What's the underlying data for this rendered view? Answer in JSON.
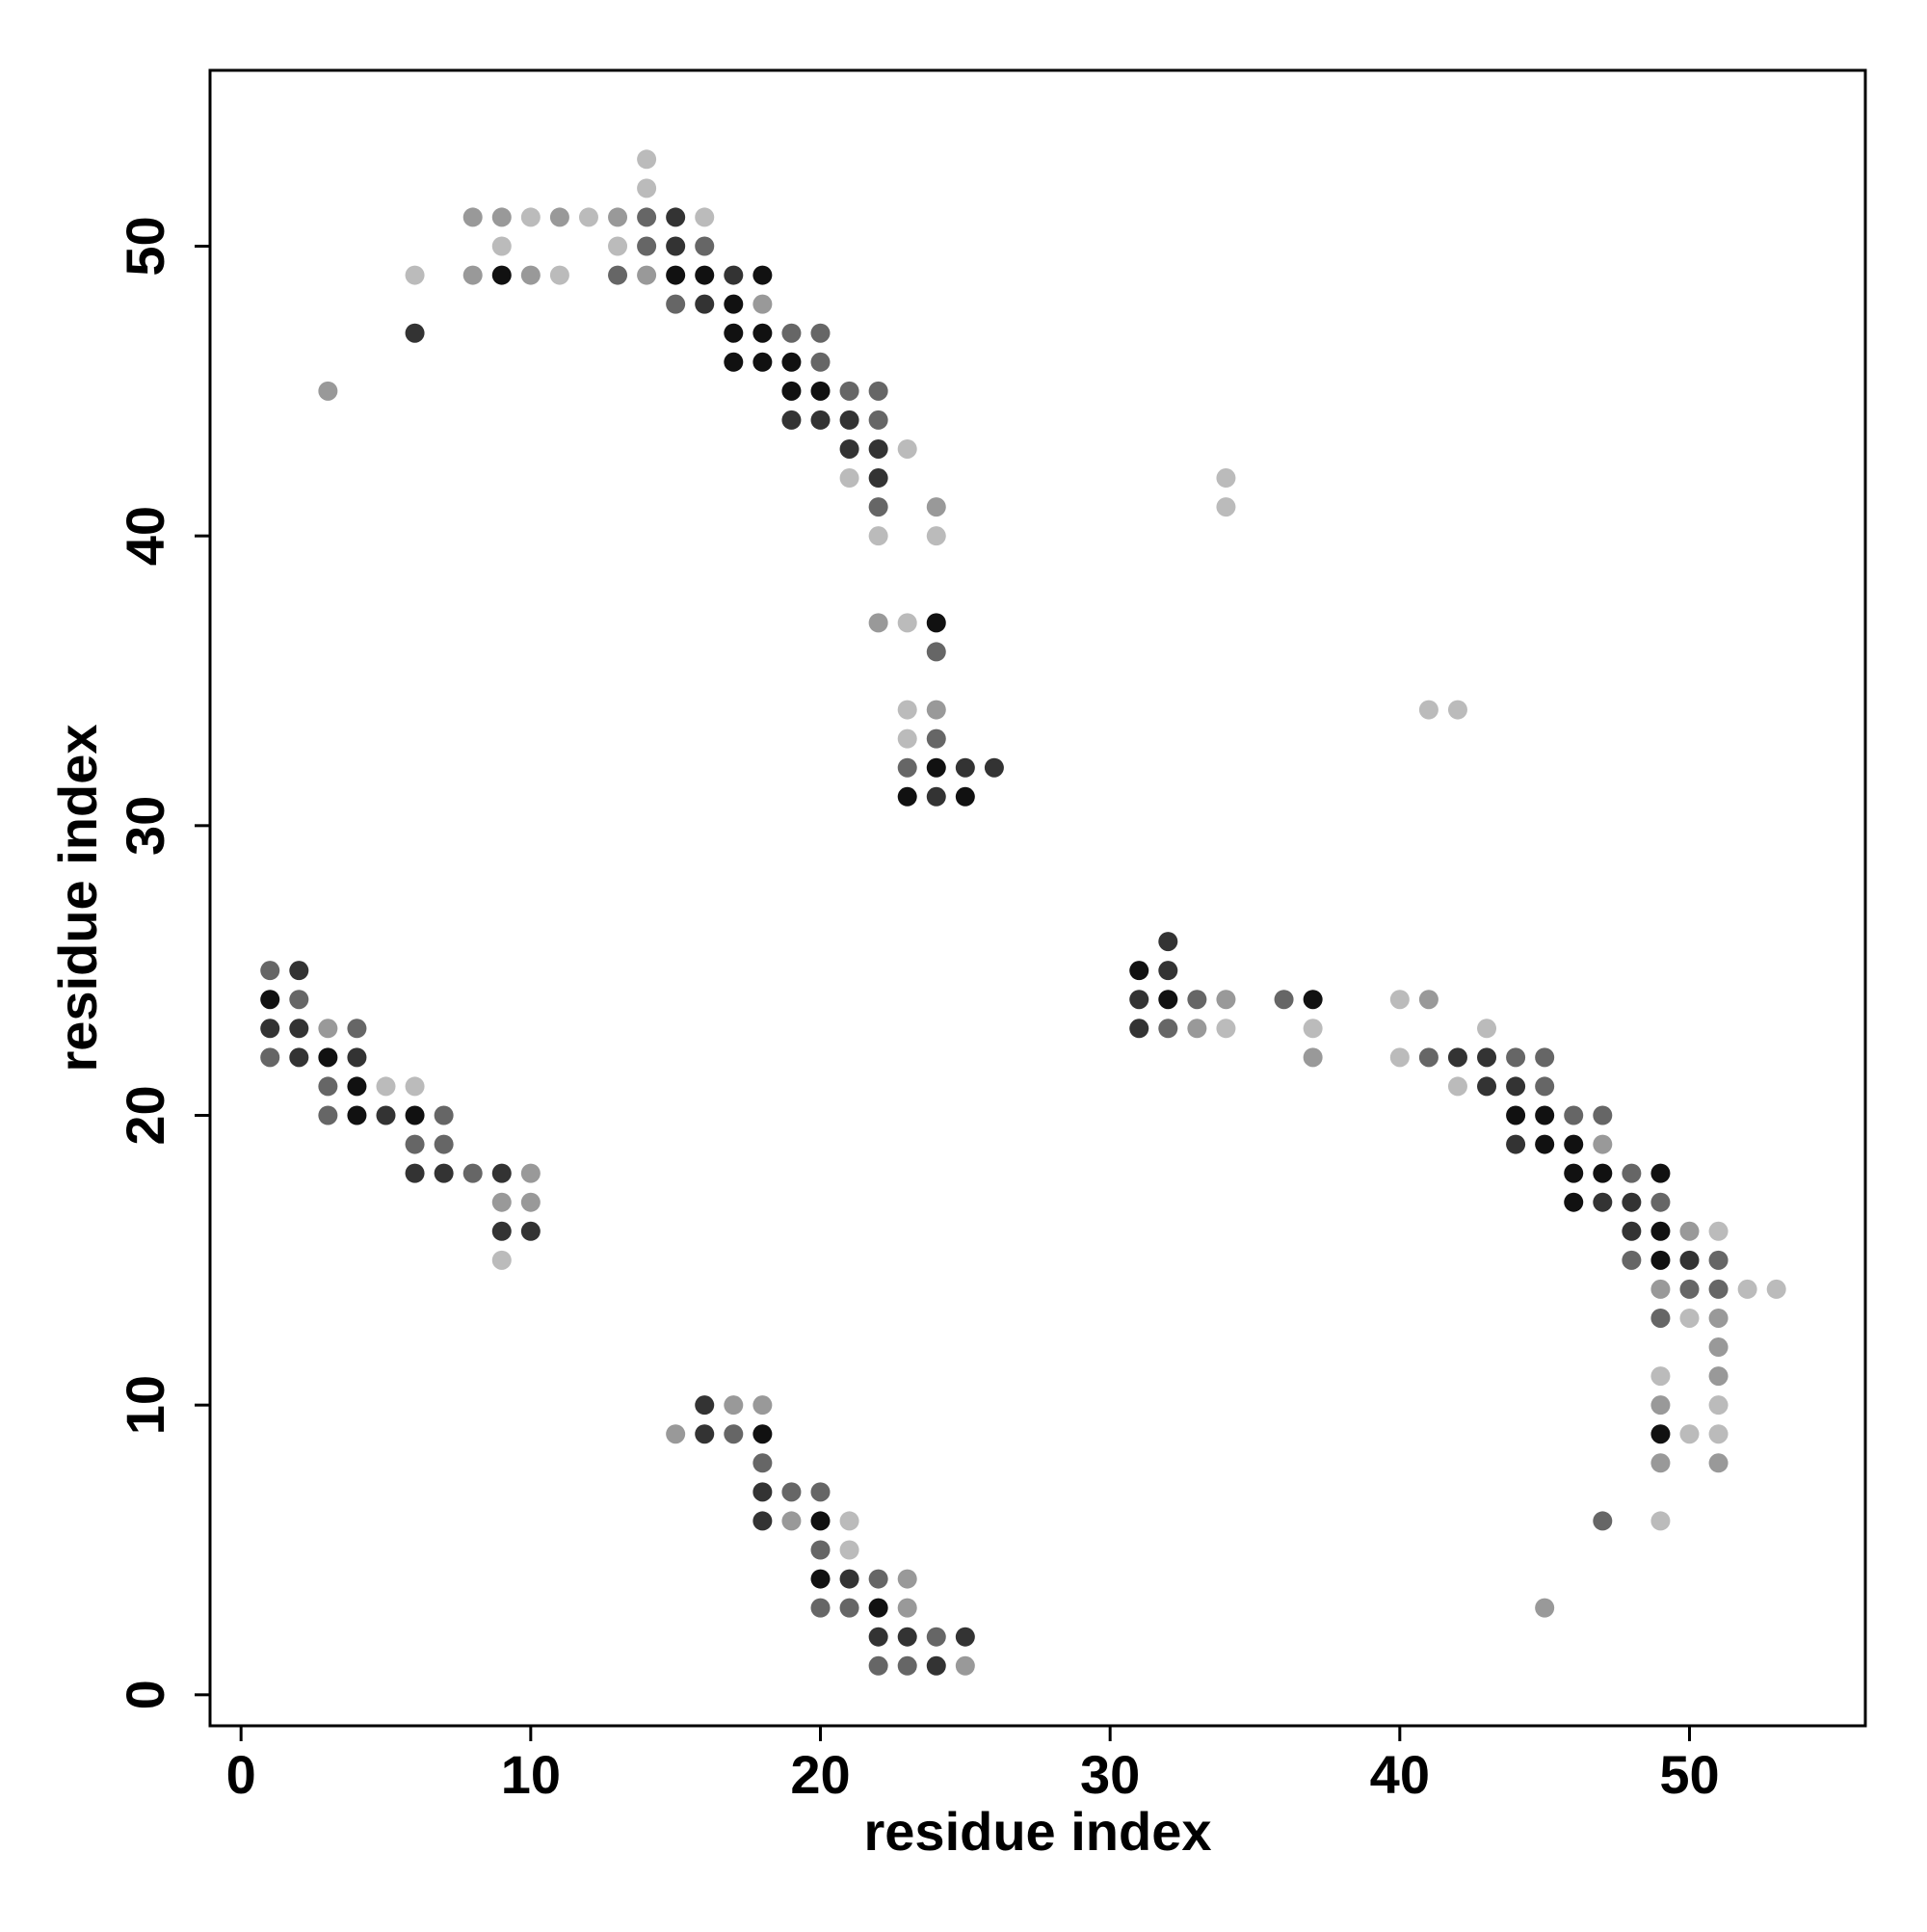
{
  "chart_data": {
    "type": "scatter",
    "xlabel": "residue index",
    "ylabel": "residue index",
    "xlim": [
      -1.07,
      56.07
    ],
    "ylim": [
      -1.07,
      56.07
    ],
    "xticks": [
      0,
      10,
      20,
      30,
      40,
      50
    ],
    "yticks": [
      0,
      10,
      20,
      30,
      40,
      50
    ],
    "series": [
      {
        "color": "#111111",
        "x": [
          9,
          15,
          16,
          18,
          17,
          17,
          18,
          17,
          18,
          19,
          19,
          20,
          24,
          24,
          23,
          25,
          31,
          1,
          32,
          37,
          3,
          4,
          4,
          6,
          44,
          45,
          45,
          46,
          46,
          47,
          49,
          46,
          49,
          49,
          18,
          49,
          20,
          20,
          22
        ],
        "values": [
          49,
          49,
          49,
          49,
          48,
          47,
          47,
          46,
          46,
          46,
          45,
          45,
          37,
          32,
          31,
          31,
          25,
          24,
          24,
          24,
          22,
          21,
          20,
          20,
          20,
          20,
          19,
          19,
          18,
          18,
          18,
          17,
          16,
          15,
          9,
          9,
          6,
          4,
          3
        ]
      },
      {
        "color": "#333333",
        "x": [
          15,
          15,
          17,
          16,
          6,
          19,
          20,
          21,
          21,
          22,
          22,
          24,
          25,
          26,
          32,
          2,
          32,
          31,
          1,
          2,
          31,
          2,
          4,
          42,
          43,
          43,
          44,
          5,
          44,
          6,
          7,
          9,
          47,
          48,
          9,
          10,
          48,
          50,
          16,
          16,
          18,
          18,
          21,
          22,
          23,
          25,
          24
        ],
        "values": [
          51,
          50,
          49,
          48,
          47,
          44,
          44,
          44,
          43,
          43,
          42,
          31,
          32,
          32,
          26,
          25,
          25,
          24,
          23,
          23,
          23,
          22,
          22,
          22,
          22,
          21,
          21,
          20,
          19,
          18,
          18,
          18,
          17,
          17,
          16,
          16,
          16,
          15,
          10,
          9,
          7,
          6,
          4,
          2,
          2,
          2,
          1
        ]
      },
      {
        "color": "#666666",
        "x": [
          14,
          14,
          16,
          13,
          15,
          19,
          20,
          20,
          21,
          22,
          22,
          22,
          24,
          24,
          23,
          1,
          2,
          33,
          36,
          4,
          32,
          1,
          41,
          44,
          45,
          3,
          45,
          3,
          7,
          46,
          47,
          6,
          7,
          8,
          48,
          49,
          48,
          51,
          50,
          51,
          49,
          17,
          18,
          19,
          20,
          47,
          20,
          22,
          20,
          21,
          24,
          22,
          23
        ],
        "values": [
          51,
          50,
          50,
          49,
          48,
          47,
          47,
          46,
          45,
          45,
          44,
          41,
          36,
          33,
          32,
          25,
          24,
          24,
          24,
          23,
          23,
          22,
          22,
          22,
          22,
          21,
          21,
          20,
          20,
          20,
          20,
          19,
          19,
          18,
          18,
          17,
          15,
          15,
          14,
          14,
          13,
          9,
          8,
          7,
          7,
          6,
          5,
          4,
          3,
          3,
          2,
          1,
          1
        ]
      },
      {
        "color": "#999999",
        "x": [
          8,
          9,
          11,
          13,
          8,
          10,
          14,
          18,
          3,
          24,
          22,
          24,
          34,
          41,
          3,
          33,
          37,
          47,
          10,
          9,
          10,
          50,
          49,
          51,
          51,
          51,
          49,
          17,
          18,
          15,
          49,
          51,
          19,
          23,
          23,
          45,
          25
        ],
        "values": [
          51,
          51,
          51,
          51,
          49,
          49,
          49,
          48,
          45,
          41,
          37,
          34,
          24,
          24,
          23,
          23,
          22,
          19,
          18,
          17,
          17,
          16,
          14,
          13,
          12,
          11,
          10,
          10,
          10,
          9,
          8,
          8,
          6,
          4,
          3,
          3,
          1
        ]
      },
      {
        "color": "#bbbbbb",
        "x": [
          14,
          14,
          10,
          12,
          16,
          9,
          13,
          6,
          11,
          23,
          21,
          34,
          34,
          22,
          24,
          23,
          23,
          41,
          42,
          23,
          40,
          34,
          37,
          43,
          40,
          5,
          6,
          42,
          9,
          51,
          52,
          53,
          50,
          49,
          51,
          50,
          51,
          21,
          49,
          21
        ],
        "values": [
          53,
          52,
          51,
          51,
          51,
          50,
          50,
          49,
          49,
          43,
          42,
          42,
          41,
          40,
          40,
          37,
          34,
          34,
          34,
          33,
          24,
          23,
          23,
          23,
          22,
          21,
          21,
          21,
          15,
          16,
          14,
          14,
          13,
          11,
          10,
          9,
          9,
          6,
          6,
          5
        ]
      }
    ]
  }
}
